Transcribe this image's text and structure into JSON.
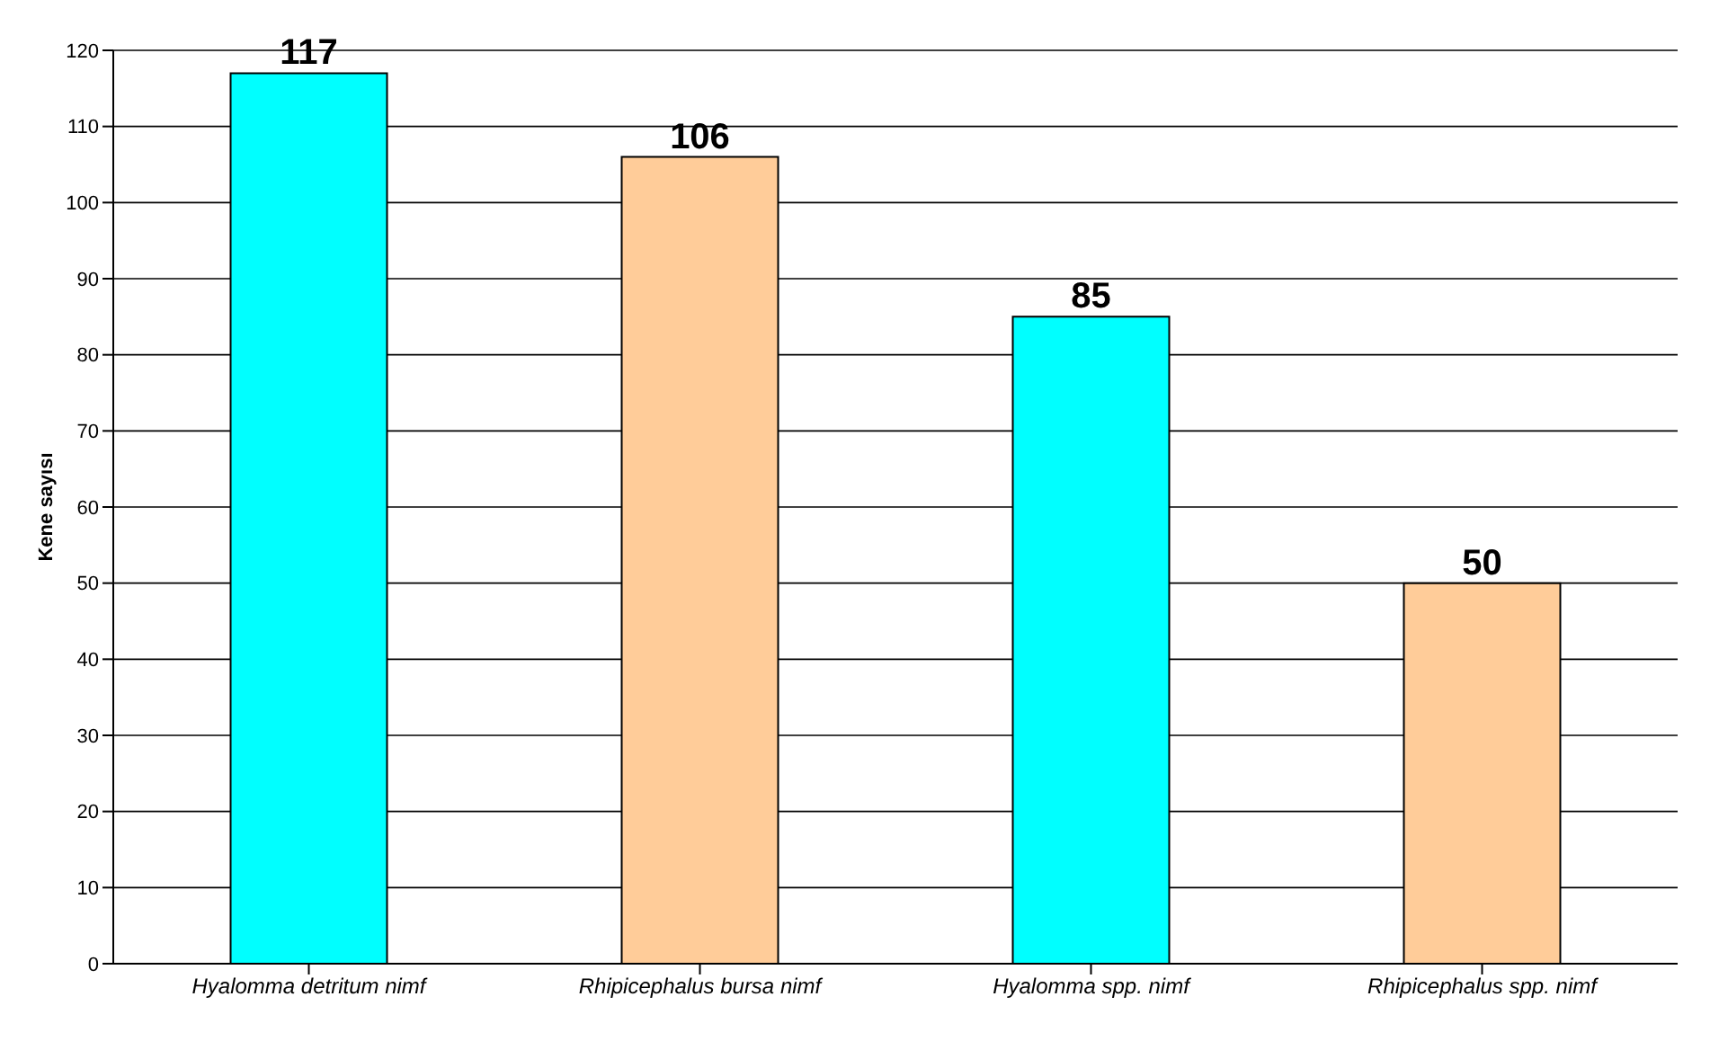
{
  "chart_data": {
    "type": "bar",
    "ylabel": "Kene sayısı",
    "categories": [
      "Hyalomma detritum nimf",
      "Rhipicephalus bursa nimf",
      "Hyalomma spp. nimf",
      "Rhipicephalus spp. nimf"
    ],
    "values": [
      117,
      106,
      85,
      50
    ],
    "colors": [
      "#00ffff",
      "#ffcc99",
      "#00ffff",
      "#ffcc99"
    ],
    "ylim": [
      0,
      120
    ],
    "yticks": [
      0,
      10,
      20,
      30,
      40,
      50,
      60,
      70,
      80,
      90,
      100,
      110,
      120
    ],
    "grid": "y",
    "data_labels": true
  }
}
